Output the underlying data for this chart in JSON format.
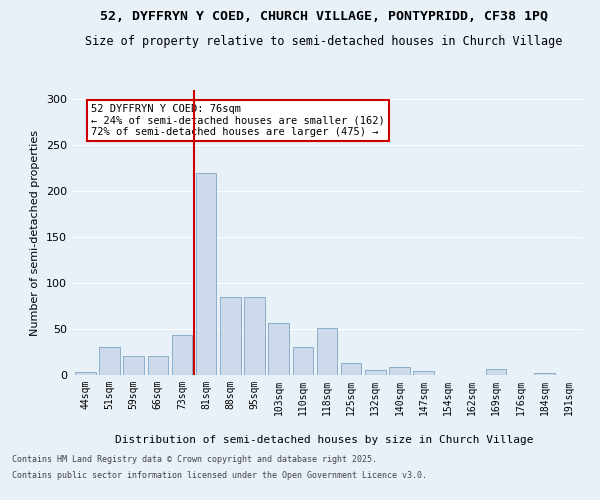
{
  "title_line1": "52, DYFFRYN Y COED, CHURCH VILLAGE, PONTYPRIDD, CF38 1PQ",
  "title_line2": "Size of property relative to semi-detached houses in Church Village",
  "xlabel": "Distribution of semi-detached houses by size in Church Village",
  "ylabel": "Number of semi-detached properties",
  "footer_line1": "Contains HM Land Registry data © Crown copyright and database right 2025.",
  "footer_line2": "Contains public sector information licensed under the Open Government Licence v3.0.",
  "annotation_title": "52 DYFFRYN Y COED: 76sqm",
  "annotation_line1": "← 24% of semi-detached houses are smaller (162)",
  "annotation_line2": "72% of semi-detached houses are larger (475) →",
  "bar_labels": [
    "44sqm",
    "51sqm",
    "59sqm",
    "66sqm",
    "73sqm",
    "81sqm",
    "88sqm",
    "95sqm",
    "103sqm",
    "110sqm",
    "118sqm",
    "125sqm",
    "132sqm",
    "140sqm",
    "147sqm",
    "154sqm",
    "162sqm",
    "169sqm",
    "176sqm",
    "184sqm",
    "191sqm"
  ],
  "bar_values": [
    3,
    30,
    21,
    21,
    44,
    220,
    85,
    85,
    57,
    30,
    51,
    13,
    5,
    9,
    4,
    0,
    0,
    6,
    0,
    2,
    0
  ],
  "bar_color": "#ccdaeb",
  "bar_edge_color": "#8aafc8",
  "vline_color": "#cc0000",
  "vline_index": 5,
  "annotation_box_color": "#cc0000",
  "ylim": [
    0,
    310
  ],
  "yticks": [
    0,
    50,
    100,
    150,
    200,
    250,
    300
  ],
  "background_color": "#e8f0f8",
  "grid_color": "#ffffff",
  "title_fontsize": 9.5,
  "subtitle_fontsize": 8.5,
  "ann_fontsize": 7.5,
  "footer_fontsize": 6
}
